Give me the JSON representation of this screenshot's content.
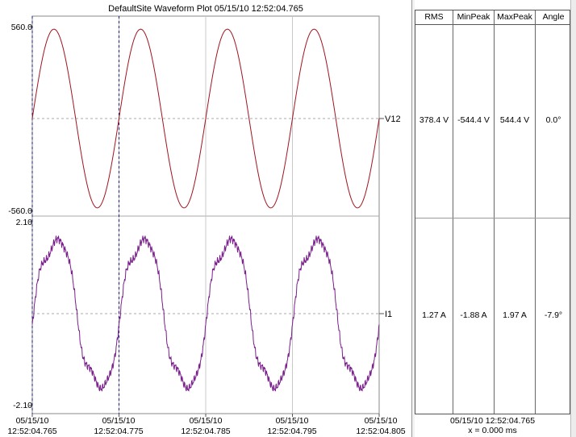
{
  "title": "DefaultSite  Waveform Plot  05/15/10  12:52:04.765",
  "channels": [
    {
      "name": "V12",
      "ymax_label": "560.0",
      "ymin_label": "-560.0",
      "color": "#a0141e",
      "peak": 544.4,
      "cycles": 4,
      "phase_deg": 0.0,
      "rms": "378.4 V",
      "min_peak": "-544.4 V",
      "max_peak": "544.4 V",
      "angle": "0.0°"
    },
    {
      "name": "I1",
      "ymax_label": "2.10",
      "ymin_label": "-2.10",
      "color": "#7a1f8c",
      "peak": 1.97,
      "cycles": 4,
      "phase_deg": -7.9,
      "rms": "1.27 A",
      "min_peak": "-1.88 A",
      "max_peak": "1.97 A",
      "angle": "-7.9°"
    }
  ],
  "table_headers": [
    "RMS",
    "MinPeak",
    "MaxPeak",
    "Angle"
  ],
  "time_ticks": [
    {
      "date": "05/15/10",
      "time": "12:52:04.765"
    },
    {
      "date": "05/15/10",
      "time": "12:52:04.775"
    },
    {
      "date": "05/15/10",
      "time": "12:52:04.785"
    },
    {
      "date": "05/15/10",
      "time": "12:52:04.795"
    },
    {
      "date": "05/15/10",
      "time": "12:52:04.805"
    }
  ],
  "cursor_time": "05/15/10  12:52:04.765",
  "cursor_offset": "x = 0.000 ms"
}
